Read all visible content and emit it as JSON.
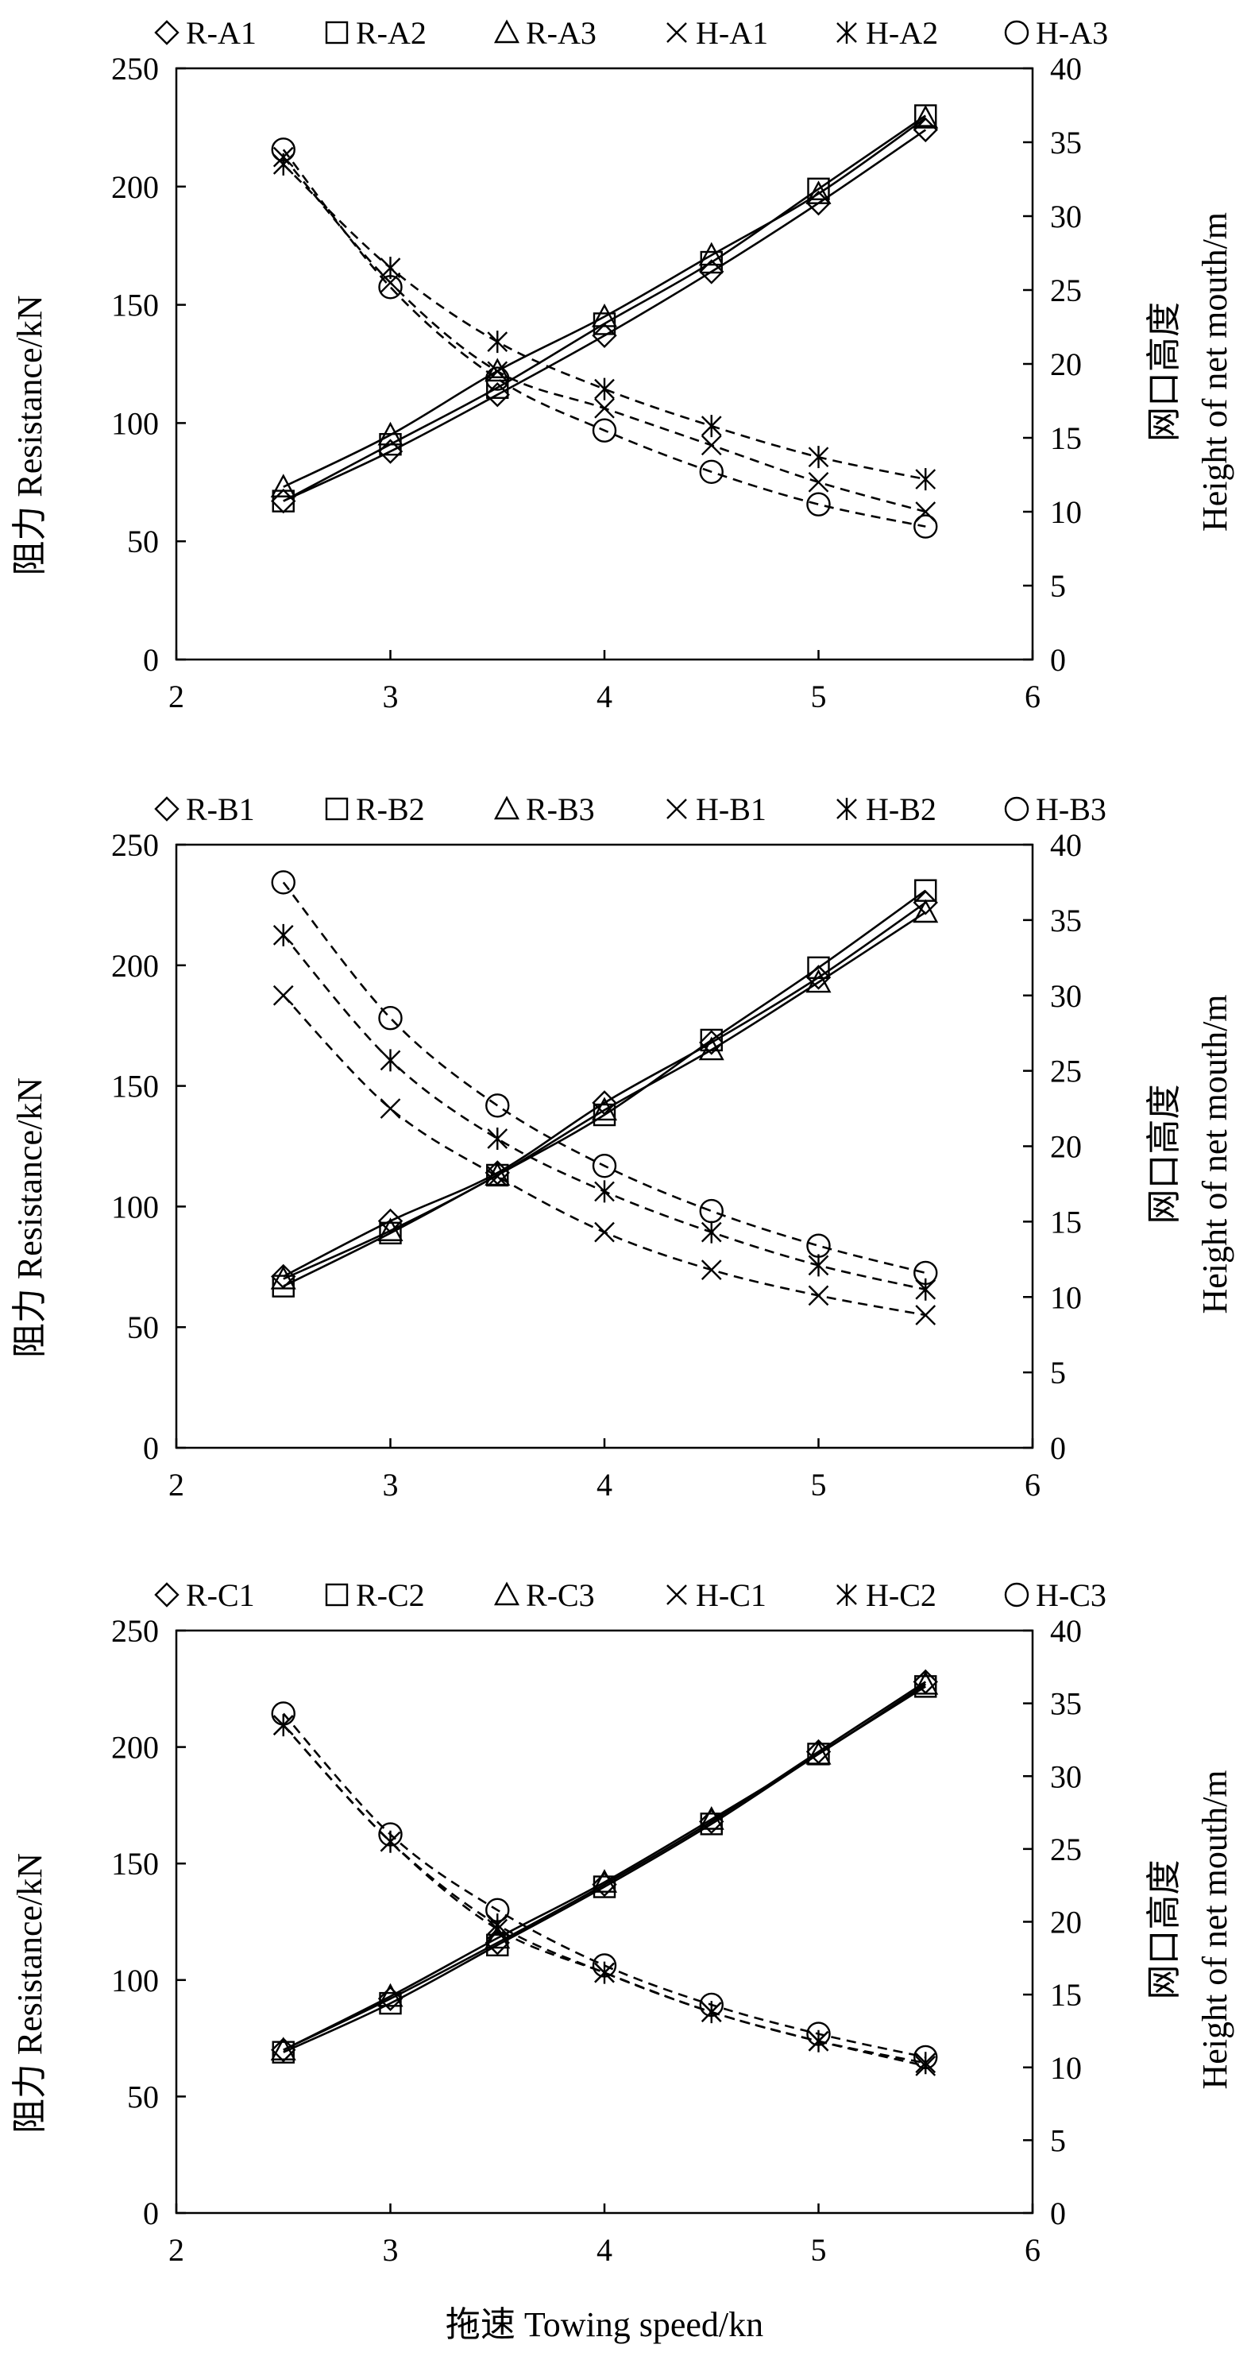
{
  "figure": {
    "xlabel_shared": "拖速 Towing speed/kn"
  },
  "chart_data": [
    {
      "type": "line",
      "legend": [
        "R-A1",
        "R-A2",
        "R-A3",
        "H-A1",
        "H-A2",
        "H-A3"
      ],
      "legend_position": "top",
      "x": [
        2.5,
        3,
        3.5,
        4,
        4.5,
        5,
        5.5
      ],
      "xlim": [
        2,
        6
      ],
      "xticks": [
        "2",
        "3",
        "4",
        "5",
        "6"
      ],
      "ylabel_left": "阻力 Resistance/kN",
      "ylim_left": [
        0,
        250
      ],
      "yticks_left": [
        "0",
        "50",
        "100",
        "150",
        "200",
        "250"
      ],
      "ylabel_right_cn": "网口高度",
      "ylabel_right_en": "Height of net mouth/m",
      "ylim_right": [
        0,
        40
      ],
      "yticks_right": [
        "0",
        "5",
        "10",
        "15",
        "20",
        "25",
        "30",
        "35",
        "40"
      ],
      "grid": false,
      "series": [
        {
          "name": "R-A1",
          "axis": "left",
          "marker": "diamond",
          "line": "solid",
          "values": [
            67,
            88,
            112,
            137,
            164,
            193,
            224
          ]
        },
        {
          "name": "R-A2",
          "axis": "left",
          "marker": "square",
          "line": "solid",
          "values": [
            67,
            91,
            115,
            142,
            168,
            199,
            230
          ]
        },
        {
          "name": "R-A3",
          "axis": "left",
          "marker": "triangle",
          "line": "solid",
          "values": [
            73,
            95,
            122,
            145,
            171,
            197,
            229
          ]
        },
        {
          "name": "H-A1",
          "axis": "right",
          "marker": "x",
          "line": "dashed",
          "values": [
            34.0,
            25.5,
            19.5,
            17.0,
            14.5,
            12.0,
            10.0
          ]
        },
        {
          "name": "H-A2",
          "axis": "right",
          "marker": "star",
          "line": "dashed",
          "values": [
            33.5,
            26.5,
            21.5,
            18.3,
            15.8,
            13.7,
            12.2
          ]
        },
        {
          "name": "H-A3",
          "axis": "right",
          "marker": "circle",
          "line": "dashed",
          "values": [
            34.5,
            25.2,
            19.0,
            15.5,
            12.7,
            10.5,
            9.0
          ]
        }
      ]
    },
    {
      "type": "line",
      "legend": [
        "R-B1",
        "R-B2",
        "R-B3",
        "H-B1",
        "H-B2",
        "H-B3"
      ],
      "legend_position": "top",
      "x": [
        2.5,
        3,
        3.5,
        4,
        4.5,
        5,
        5.5
      ],
      "xlim": [
        2,
        6
      ],
      "xticks": [
        "2",
        "3",
        "4",
        "5",
        "6"
      ],
      "ylabel_left": "阻力 Resistance/kN",
      "ylim_left": [
        0,
        250
      ],
      "yticks_left": [
        "0",
        "50",
        "100",
        "150",
        "200",
        "250"
      ],
      "ylabel_right_cn": "网口高度",
      "ylabel_right_en": "Height of net mouth/m",
      "ylim_right": [
        0,
        40
      ],
      "yticks_right": [
        "0",
        "5",
        "10",
        "15",
        "20",
        "25",
        "30",
        "35",
        "40"
      ],
      "grid": false,
      "series": [
        {
          "name": "R-B1",
          "axis": "left",
          "marker": "diamond",
          "line": "solid",
          "values": [
            71,
            94,
            114,
            143,
            168,
            195,
            226
          ]
        },
        {
          "name": "R-B2",
          "axis": "left",
          "marker": "square",
          "line": "solid",
          "values": [
            67,
            89,
            113,
            138,
            169,
            199,
            231
          ]
        },
        {
          "name": "R-B3",
          "axis": "left",
          "marker": "triangle",
          "line": "solid",
          "values": [
            70,
            90,
            113,
            140,
            165,
            193,
            222
          ]
        },
        {
          "name": "H-B1",
          "axis": "right",
          "marker": "x",
          "line": "dashed",
          "values": [
            30.0,
            22.5,
            18.0,
            14.3,
            11.8,
            10.1,
            8.8
          ]
        },
        {
          "name": "H-B2",
          "axis": "right",
          "marker": "star",
          "line": "dashed",
          "values": [
            34.0,
            25.7,
            20.5,
            17.0,
            14.3,
            12.1,
            10.5
          ]
        },
        {
          "name": "H-B3",
          "axis": "right",
          "marker": "circle",
          "line": "dashed",
          "values": [
            37.5,
            28.5,
            22.7,
            18.7,
            15.7,
            13.4,
            11.6
          ]
        }
      ]
    },
    {
      "type": "line",
      "legend": [
        "R-C1",
        "R-C2",
        "R-C3",
        "H-C1",
        "H-C2",
        "H-C3"
      ],
      "legend_position": "top",
      "x": [
        2.5,
        3,
        3.5,
        4,
        4.5,
        5,
        5.5
      ],
      "xlim": [
        2,
        6
      ],
      "xticks": [
        "2",
        "3",
        "4",
        "5",
        "6"
      ],
      "ylabel_left": "阻力 Resistance/kN",
      "ylim_left": [
        0,
        250
      ],
      "yticks_left": [
        "0",
        "50",
        "100",
        "150",
        "200",
        "250"
      ],
      "ylabel_right_cn": "网口高度",
      "ylabel_right_en": "Height of net mouth/m",
      "ylim_right": [
        0,
        40
      ],
      "yticks_right": [
        "0",
        "5",
        "10",
        "15",
        "20",
        "25",
        "30",
        "35",
        "40"
      ],
      "grid": false,
      "series": [
        {
          "name": "R-C1",
          "axis": "left",
          "marker": "diamond",
          "line": "solid",
          "values": [
            70,
            92,
            116,
            141,
            168,
            198,
            228
          ]
        },
        {
          "name": "R-C2",
          "axis": "left",
          "marker": "square",
          "line": "solid",
          "values": [
            69,
            90,
            115,
            140,
            167,
            197,
            226
          ]
        },
        {
          "name": "R-C3",
          "axis": "left",
          "marker": "triangle",
          "line": "solid",
          "values": [
            70,
            93,
            118,
            142,
            169,
            197,
            227
          ]
        },
        {
          "name": "H-C1",
          "axis": "right",
          "marker": "x",
          "line": "dashed",
          "values": [
            33.5,
            25.5,
            19.5,
            16.5,
            13.8,
            11.8,
            10.1
          ]
        },
        {
          "name": "H-C2",
          "axis": "right",
          "marker": "star",
          "line": "dashed",
          "values": [
            33.5,
            25.5,
            19.8,
            16.5,
            13.8,
            11.8,
            10.3
          ]
        },
        {
          "name": "H-C3",
          "axis": "right",
          "marker": "circle",
          "line": "dashed",
          "values": [
            34.3,
            26.0,
            20.8,
            17.0,
            14.3,
            12.3,
            10.7
          ]
        }
      ]
    }
  ]
}
